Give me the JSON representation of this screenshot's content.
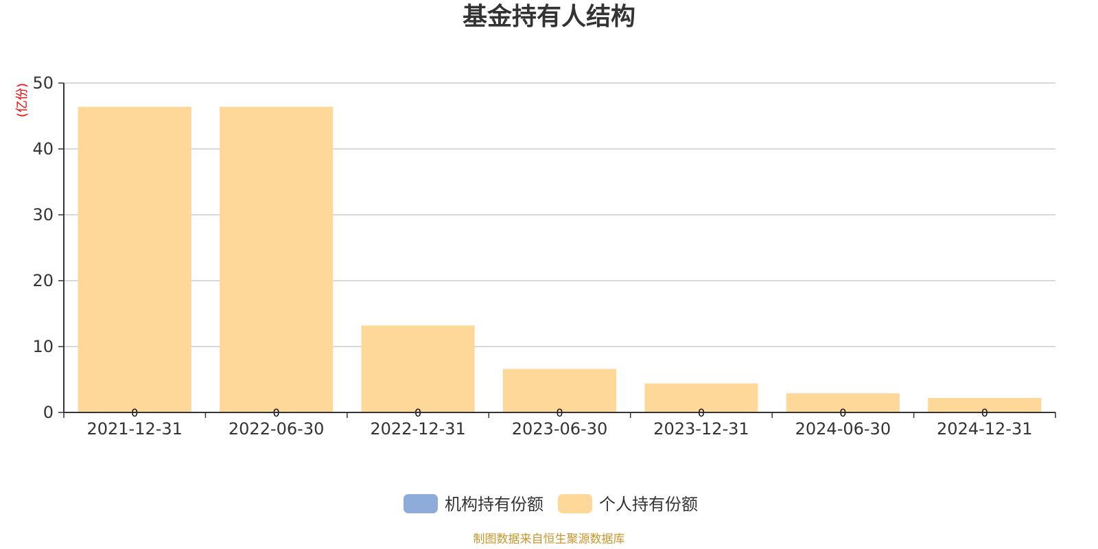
{
  "chart_data": {
    "type": "bar",
    "title": "基金持有人结构",
    "unit_label": "(亿份)",
    "categories": [
      "2021-12-31",
      "2022-06-30",
      "2022-12-31",
      "2023-06-30",
      "2023-12-31",
      "2024-06-30",
      "2024-12-31"
    ],
    "series": [
      {
        "name": "机构持有份额",
        "color": "#8eacd9",
        "values": [
          0,
          0,
          0,
          0,
          0,
          0,
          0
        ]
      },
      {
        "name": "个人持有份额",
        "color": "#fed899",
        "values": [
          46.4,
          46.4,
          13.2,
          6.6,
          4.4,
          2.9,
          2.2
        ]
      }
    ],
    "ylim": [
      0,
      50
    ],
    "yticks": [
      0,
      10,
      20,
      30,
      40,
      50
    ],
    "grid": true,
    "legend_position": "bottom-center"
  },
  "source_note": "制图数据来自恒生聚源数据库",
  "colors": {
    "title": "#333333",
    "unit": "#ff0000",
    "axis": "#333333",
    "grid": "#cccccc",
    "source": "#c9962c"
  }
}
